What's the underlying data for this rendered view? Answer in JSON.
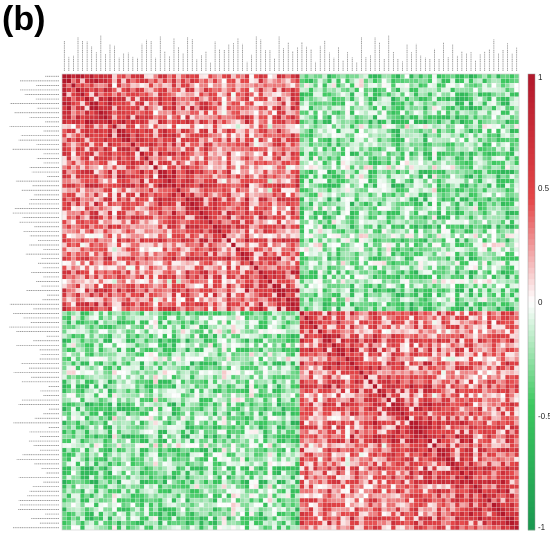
{
  "panel": {
    "label": "(b)"
  },
  "colors": {
    "positive": "#b2182b",
    "mid": "#ffffff",
    "negative": "#1a9850",
    "grid": "#f2f2f2"
  },
  "chart_data": {
    "type": "heatmap",
    "title": "",
    "xlabel": "",
    "ylabel": "",
    "matrix_size": 100,
    "clusters": [
      {
        "name": "",
        "start": 0,
        "end": 52
      },
      {
        "name": "",
        "start": 52,
        "end": 100
      }
    ],
    "within_cluster_correlation": "positive",
    "between_cluster_correlation": "negative",
    "diagonal_value": 1,
    "colorbar": {
      "min": -1,
      "max": 1,
      "ticks": [
        {
          "value": 1,
          "label": "1"
        },
        {
          "value": 0.5,
          "label": "0.5"
        },
        {
          "value": 0,
          "label": "0"
        },
        {
          "value": -0.5,
          "label": "-0.5"
        },
        {
          "value": -1,
          "label": "-1"
        }
      ]
    },
    "legend_placement": "right",
    "grid": true
  }
}
